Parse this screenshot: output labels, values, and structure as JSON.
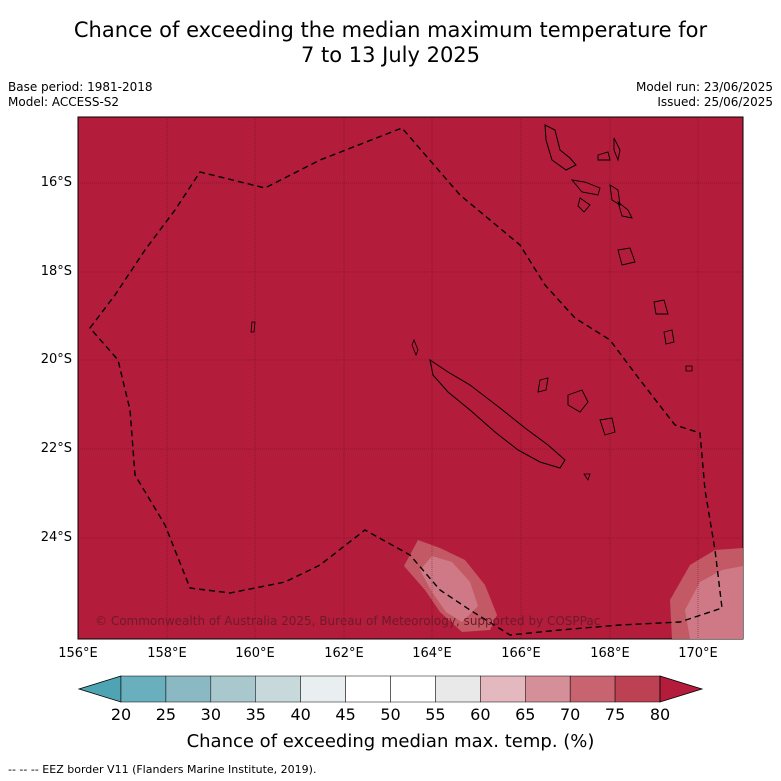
{
  "title": {
    "line1": "Chance of exceeding the median maximum temperature for",
    "line2": "7 to 13 July 2025"
  },
  "meta": {
    "base_period": "Base period: 1981-2018",
    "model": "Model: ACCESS-S2",
    "model_run": "Model run: 23/06/2025",
    "issued": "Issued: 25/06/2025"
  },
  "map": {
    "fill_color": "#b31c3b",
    "lat_labels": [
      "16°S",
      "18°S",
      "20°S",
      "22°S",
      "24°S"
    ],
    "lon_labels": [
      "156°E",
      "158°E",
      "160°E",
      "162°E",
      "164°E",
      "166°E",
      "168°E",
      "170°E"
    ],
    "copyright": "© Commonwealth of Australia 2025, Bureau of Meteorology, supported by COSPPac"
  },
  "colorbar": {
    "ticks": [
      "20",
      "25",
      "30",
      "35",
      "40",
      "45",
      "50",
      "55",
      "60",
      "65",
      "70",
      "75",
      "80"
    ],
    "colors": [
      "#4ea4b3",
      "#6aafbd",
      "#8ab9c3",
      "#a9c8cd",
      "#c8d9dc",
      "#e9eff0",
      "#ffffff",
      "#ffffff",
      "#e9e9e9",
      "#e3b9bf",
      "#d58f99",
      "#c7646f",
      "#bc4152",
      "#b31c3b"
    ],
    "label": "Chance of exceeding median max. temp. (%)"
  },
  "legend": {
    "eez_note": "--  --  -- EEZ border V11 (Flanders Marine Institute, 2019)."
  }
}
